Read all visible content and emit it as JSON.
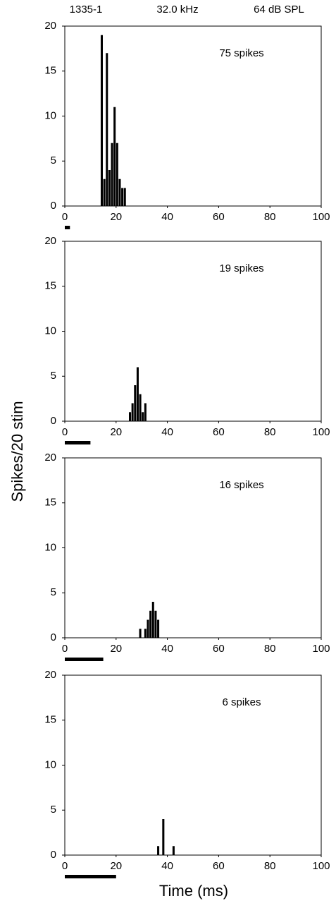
{
  "labels": {
    "ylabel": "Spikes/20 stim",
    "xlabel": "Time (ms)"
  },
  "chart_data": [
    {
      "type": "histogram",
      "header": [
        "1335-1",
        "32.0 kHz",
        "64 dB SPL"
      ],
      "annotation": "75 spikes",
      "bins": [
        14,
        15,
        16,
        17,
        18,
        19,
        20,
        21,
        22,
        23,
        24
      ],
      "values": [
        19,
        3,
        17,
        4,
        7,
        11,
        7,
        3,
        2,
        2
      ],
      "stimulus": [
        0,
        2
      ],
      "color": "#000000",
      "xlim": [
        0,
        100
      ],
      "xticks": [
        0,
        20,
        40,
        60,
        80,
        100
      ],
      "ylim": [
        0,
        20
      ],
      "yticks": [
        0,
        5,
        10,
        15,
        20
      ]
    },
    {
      "type": "histogram",
      "annotation": "19 spikes",
      "bins": [
        25,
        26,
        27,
        28,
        29,
        30,
        31,
        32
      ],
      "values": [
        1,
        2,
        4,
        6,
        3,
        1,
        2
      ],
      "stimulus": [
        0,
        10
      ],
      "color": "#000000",
      "xlim": [
        0,
        100
      ],
      "xticks": [
        0,
        20,
        40,
        60,
        80,
        100
      ],
      "ylim": [
        0,
        20
      ],
      "yticks": [
        0,
        5,
        10,
        15,
        20
      ]
    },
    {
      "type": "histogram",
      "annotation": "16 spikes",
      "bins": [
        29,
        30,
        31,
        32,
        33,
        34,
        35,
        36,
        37
      ],
      "values": [
        1,
        0,
        1,
        2,
        3,
        4,
        3,
        2
      ],
      "stimulus": [
        0,
        15
      ],
      "color": "#000000",
      "xlim": [
        0,
        100
      ],
      "xticks": [
        0,
        20,
        40,
        60,
        80,
        100
      ],
      "ylim": [
        0,
        20
      ],
      "yticks": [
        0,
        5,
        10,
        15,
        20
      ]
    },
    {
      "type": "histogram",
      "annotation": "6 spikes",
      "bins": [
        36,
        37,
        38,
        39,
        40,
        41,
        42,
        43
      ],
      "values": [
        1,
        0,
        4,
        0,
        0,
        0,
        1
      ],
      "stimulus": [
        0,
        20
      ],
      "color": "#000000",
      "xlim": [
        0,
        100
      ],
      "xticks": [
        0,
        20,
        40,
        60,
        80,
        100
      ],
      "ylim": [
        0,
        20
      ],
      "yticks": [
        0,
        5,
        10,
        15,
        20
      ]
    }
  ]
}
